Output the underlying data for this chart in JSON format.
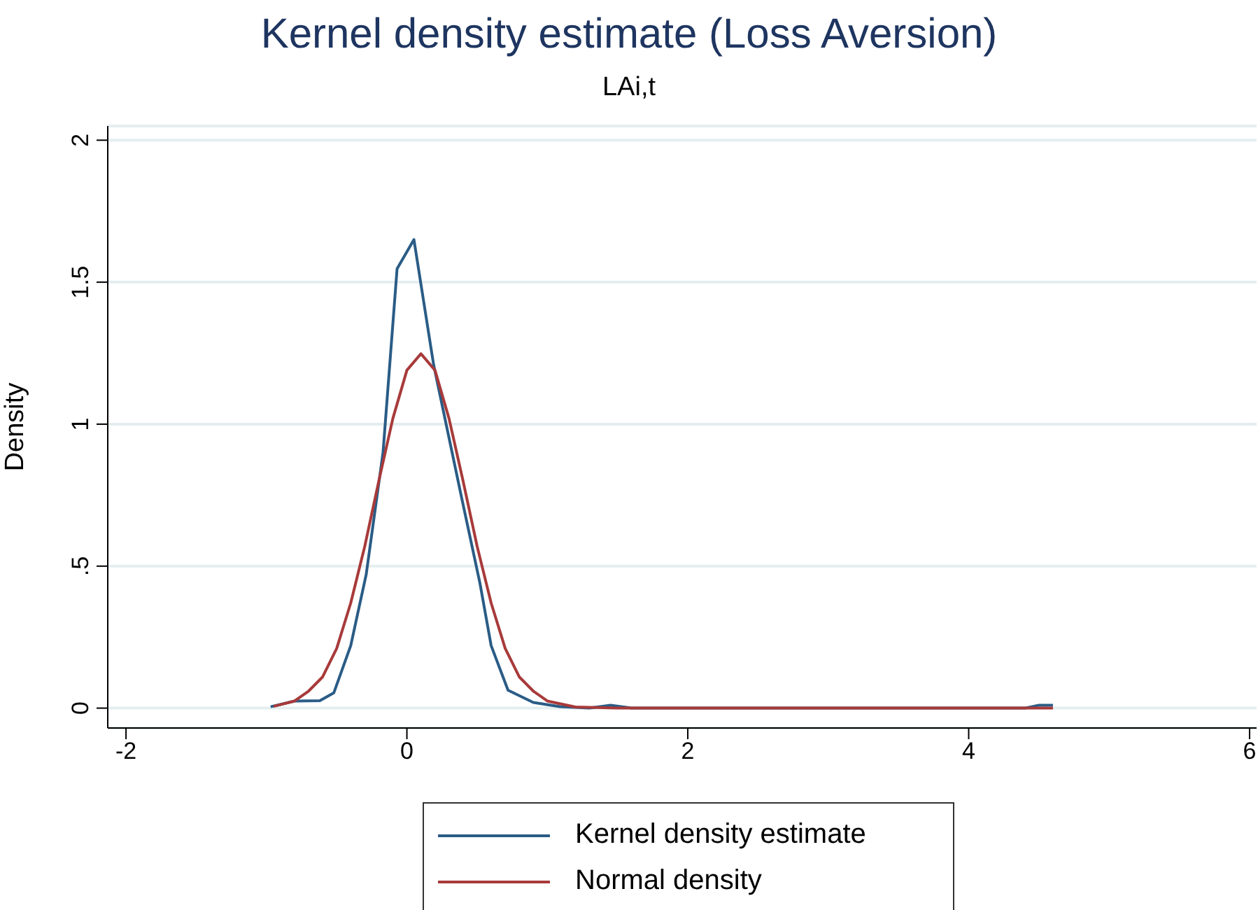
{
  "chart_data": {
    "type": "line",
    "title": "Kernel density estimate (Loss Aversion)",
    "subtitle": "LAi,t",
    "ylabel": "Density",
    "xlim": [
      -2.13,
      6.05
    ],
    "xticks": [
      -2,
      0,
      2,
      4,
      6
    ],
    "ylim": [
      -0.07,
      2.05
    ],
    "yticks": [
      0,
      {
        "value": 0.5,
        "label": ".5"
      },
      1,
      1.5,
      2
    ],
    "grid": "y",
    "legend": "bottom",
    "marker": "none",
    "line_style": "solid",
    "series": [
      {
        "name": "Kernel density estimate",
        "color": "#2a5c86",
        "x": [
          -0.97,
          -0.8,
          -0.62,
          -0.52,
          -0.4,
          -0.29,
          -0.17,
          -0.07,
          0.05,
          0.19,
          0.39,
          0.52,
          0.6,
          0.72,
          0.9,
          1.09,
          1.3,
          1.45,
          1.6,
          4.4,
          4.5,
          4.6
        ],
        "values": [
          0.005,
          0.025,
          0.026,
          0.054,
          0.22,
          0.47,
          0.9,
          1.547,
          1.65,
          1.21,
          0.74,
          0.44,
          0.22,
          0.063,
          0.02,
          0.005,
          0,
          0.01,
          0,
          0,
          0.01,
          0.01
        ]
      },
      {
        "name": "Normal density",
        "color": "#a83a3a",
        "x": [
          -0.95,
          -0.8,
          -0.7,
          -0.6,
          -0.5,
          -0.4,
          -0.3,
          -0.2,
          -0.1,
          0,
          0.1,
          0.2,
          0.3,
          0.4,
          0.5,
          0.6,
          0.7,
          0.8,
          0.9,
          1,
          1.2,
          1.5,
          4.6
        ],
        "values": [
          0.006,
          0.025,
          0.06,
          0.11,
          0.21,
          0.37,
          0.57,
          0.8,
          1.02,
          1.19,
          1.248,
          1.19,
          1.02,
          0.8,
          0.57,
          0.37,
          0.21,
          0.11,
          0.06,
          0.025,
          0.004,
          0,
          0
        ]
      }
    ]
  }
}
